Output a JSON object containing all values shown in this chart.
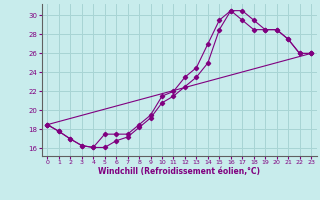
{
  "xlabel": "Windchill (Refroidissement éolien,°C)",
  "bg_color": "#c8ecec",
  "line_color": "#800080",
  "grid_color": "#a8d4d4",
  "xlim": [
    -0.5,
    23.5
  ],
  "ylim": [
    15.2,
    31.2
  ],
  "xticks": [
    0,
    1,
    2,
    3,
    4,
    5,
    6,
    7,
    8,
    9,
    10,
    11,
    12,
    13,
    14,
    15,
    16,
    17,
    18,
    19,
    20,
    21,
    22,
    23
  ],
  "yticks": [
    16,
    18,
    20,
    22,
    24,
    26,
    28,
    30
  ],
  "series1_x": [
    0,
    1,
    2,
    3,
    4,
    5,
    6,
    7,
    8,
    9,
    10,
    11,
    12,
    13,
    14,
    15,
    16,
    17,
    18,
    19,
    20,
    21,
    22,
    23
  ],
  "series1_y": [
    18.5,
    17.8,
    17.0,
    16.3,
    16.1,
    17.5,
    17.5,
    17.5,
    18.5,
    19.5,
    21.5,
    22.0,
    23.5,
    24.5,
    27.0,
    29.5,
    30.5,
    30.5,
    29.5,
    28.5,
    28.5,
    27.5,
    26.0,
    26.0
  ],
  "series2_x": [
    0,
    1,
    2,
    3,
    4,
    5,
    6,
    7,
    8,
    9,
    10,
    11,
    12,
    13,
    14,
    15,
    16,
    17,
    18,
    19,
    20,
    21,
    22,
    23
  ],
  "series2_y": [
    18.5,
    17.8,
    17.0,
    16.3,
    16.1,
    16.1,
    16.8,
    17.2,
    18.2,
    19.2,
    20.8,
    21.5,
    22.5,
    23.5,
    25.0,
    28.5,
    30.5,
    29.5,
    28.5,
    28.5,
    28.5,
    27.5,
    26.0,
    26.0
  ],
  "series3_x": [
    0,
    23
  ],
  "series3_y": [
    18.5,
    26.0
  ]
}
